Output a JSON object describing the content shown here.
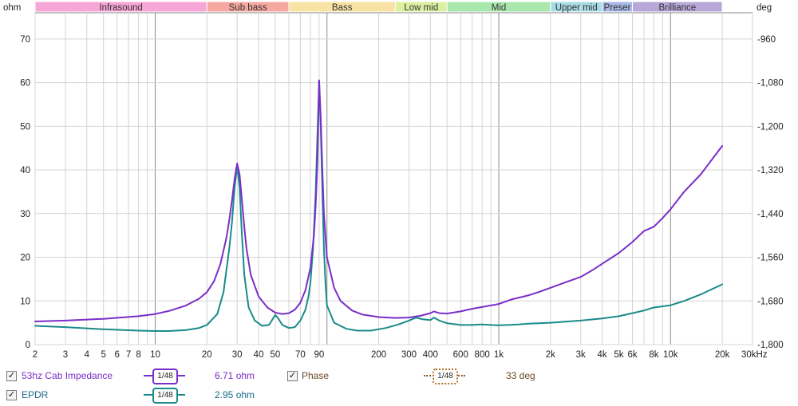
{
  "chart_data": {
    "type": "line",
    "x_scale": "log",
    "xlim": [
      2,
      30000
    ],
    "ylim": [
      0,
      76
    ],
    "y2lim": [
      -1800,
      -888
    ],
    "ylabel": "ohm",
    "y2label": "deg",
    "grid": true,
    "x_ticks": [
      {
        "v": 2,
        "label": "2"
      },
      {
        "v": 3,
        "label": "3"
      },
      {
        "v": 4,
        "label": "4"
      },
      {
        "v": 5,
        "label": "5"
      },
      {
        "v": 6,
        "label": "6"
      },
      {
        "v": 7,
        "label": "7"
      },
      {
        "v": 8,
        "label": "8"
      },
      {
        "v": 10,
        "label": "10"
      },
      {
        "v": 20,
        "label": "20"
      },
      {
        "v": 30,
        "label": "30"
      },
      {
        "v": 40,
        "label": "40"
      },
      {
        "v": 50,
        "label": "50"
      },
      {
        "v": 70,
        "label": "70"
      },
      {
        "v": 90,
        "label": "90"
      },
      {
        "v": 200,
        "label": "200"
      },
      {
        "v": 300,
        "label": "300"
      },
      {
        "v": 400,
        "label": "400"
      },
      {
        "v": 600,
        "label": "600"
      },
      {
        "v": 800,
        "label": "800"
      },
      {
        "v": 1000,
        "label": "1k"
      },
      {
        "v": 2000,
        "label": "2k"
      },
      {
        "v": 3000,
        "label": "3k"
      },
      {
        "v": 4000,
        "label": "4k"
      },
      {
        "v": 5000,
        "label": "5k"
      },
      {
        "v": 6000,
        "label": "6k"
      },
      {
        "v": 8000,
        "label": "8k"
      },
      {
        "v": 10000,
        "label": "10k"
      },
      {
        "v": 20000,
        "label": "20k"
      },
      {
        "v": 30000,
        "label": "30kHz"
      }
    ],
    "y_ticks": [
      0,
      10,
      20,
      30,
      40,
      50,
      60,
      70
    ],
    "y2_ticks": [
      {
        "v": -960,
        "label": "-960"
      },
      {
        "v": -1080,
        "label": "-1,080"
      },
      {
        "v": -1200,
        "label": "-1,200"
      },
      {
        "v": -1320,
        "label": "-1,320"
      },
      {
        "v": -1440,
        "label": "-1,440"
      },
      {
        "v": -1560,
        "label": "-1,560"
      },
      {
        "v": -1680,
        "label": "-1,680"
      },
      {
        "v": -1800,
        "label": "-1,800"
      }
    ],
    "bands": [
      {
        "name": "Infrasound",
        "from": 2,
        "to": 20,
        "color": "#f7a6d8"
      },
      {
        "name": "Sub bass",
        "from": 20,
        "to": 60,
        "color": "#f4a8a0"
      },
      {
        "name": "Bass",
        "from": 60,
        "to": 250,
        "color": "#f8e2a4"
      },
      {
        "name": "Low mid",
        "from": 250,
        "to": 500,
        "color": "#dcf0a0"
      },
      {
        "name": "Mid",
        "from": 500,
        "to": 2000,
        "color": "#a8e8ac"
      },
      {
        "name": "Upper mid",
        "from": 2000,
        "to": 4000,
        "color": "#a8dce4"
      },
      {
        "name": "Presence",
        "display": "Preser",
        "from": 4000,
        "to": 6000,
        "color": "#a8b8e8"
      },
      {
        "name": "Brilliance",
        "from": 6000,
        "to": 20000,
        "color": "#b8a8d8"
      }
    ],
    "series": [
      {
        "name": "53hz Cab Impedance",
        "color": "#7a2ec8",
        "x": [
          2,
          3,
          5,
          8,
          10,
          12,
          15,
          18,
          20,
          22,
          24,
          26,
          27,
          28,
          29,
          30,
          31,
          32,
          33,
          34,
          36,
          40,
          45,
          50,
          55,
          60,
          65,
          70,
          75,
          80,
          84,
          86,
          88,
          90,
          92,
          94,
          96,
          100,
          110,
          120,
          140,
          160,
          200,
          250,
          300,
          350,
          400,
          420,
          450,
          500,
          600,
          700,
          800,
          1000,
          1200,
          1500,
          1700,
          2000,
          2500,
          3000,
          3500,
          4000,
          5000,
          6000,
          7000,
          8000,
          9000,
          10000,
          12000,
          15000,
          20000
        ],
        "y": [
          5.3,
          5.5,
          5.9,
          6.5,
          7.0,
          7.7,
          8.9,
          10.5,
          12.0,
          14.5,
          18.5,
          24.5,
          28.5,
          33.0,
          38.0,
          41.5,
          39.0,
          33.0,
          27.0,
          22.0,
          16.0,
          11.0,
          8.5,
          7.3,
          7.0,
          7.2,
          8.0,
          9.6,
          12.5,
          17.5,
          25.0,
          32.0,
          42.0,
          60.5,
          52.0,
          40.0,
          30.0,
          20.0,
          13.0,
          10.0,
          7.8,
          6.9,
          6.3,
          6.1,
          6.2,
          6.6,
          7.2,
          7.6,
          7.2,
          7.1,
          7.6,
          8.2,
          8.6,
          9.3,
          10.4,
          11.3,
          12.0,
          13.0,
          14.4,
          15.5,
          17.0,
          18.5,
          21.0,
          23.5,
          26.0,
          27.0,
          29.0,
          31.0,
          35.0,
          39.0,
          45.5
        ]
      },
      {
        "name": "EPDR",
        "color": "#1a8a8a",
        "x": [
          2,
          3,
          5,
          8,
          10,
          12,
          15,
          18,
          20,
          23,
          25,
          27,
          28,
          29,
          30,
          31,
          32,
          33,
          35,
          38,
          42,
          46,
          50,
          52,
          55,
          60,
          65,
          70,
          75,
          78,
          80,
          83,
          86,
          88,
          90,
          92,
          94,
          96,
          98,
          100,
          110,
          130,
          150,
          180,
          220,
          260,
          300,
          330,
          360,
          400,
          420,
          450,
          500,
          600,
          700,
          800,
          900,
          1000,
          1300,
          1500,
          2000,
          3000,
          4000,
          5000,
          6000,
          7000,
          8000,
          10000,
          12000,
          15000,
          20000
        ],
        "y": [
          4.3,
          4.0,
          3.5,
          3.2,
          3.1,
          3.1,
          3.3,
          3.8,
          4.5,
          7.0,
          12.0,
          22.0,
          28.0,
          36.0,
          41.0,
          36.0,
          25.0,
          16.0,
          8.5,
          5.5,
          4.3,
          4.5,
          6.8,
          6.0,
          4.5,
          3.8,
          4.0,
          5.5,
          8.0,
          11.0,
          14.0,
          22.0,
          35.0,
          48.0,
          60.5,
          50.0,
          35.0,
          22.0,
          14.0,
          9.0,
          5.0,
          3.6,
          3.2,
          3.2,
          3.8,
          4.6,
          5.5,
          6.2,
          5.8,
          5.6,
          6.2,
          5.5,
          4.9,
          4.5,
          4.5,
          4.6,
          4.5,
          4.4,
          4.6,
          4.8,
          5.0,
          5.5,
          6.0,
          6.5,
          7.2,
          7.8,
          8.5,
          9.0,
          10.0,
          11.5,
          13.8
        ]
      }
    ]
  },
  "legend": {
    "series1": {
      "label": "53hz Cab Impedance",
      "smoothing": "1/48",
      "value": "6.71 ohm",
      "color": "#7a2ec8"
    },
    "series2": {
      "label": "EPDR",
      "smoothing": "1/48",
      "value": "2.95 ohm",
      "color": "#1a8a8a"
    },
    "series3": {
      "label": "Phase",
      "smoothing": "1/48",
      "value": "33 deg",
      "color": "#8a5a2a"
    }
  }
}
